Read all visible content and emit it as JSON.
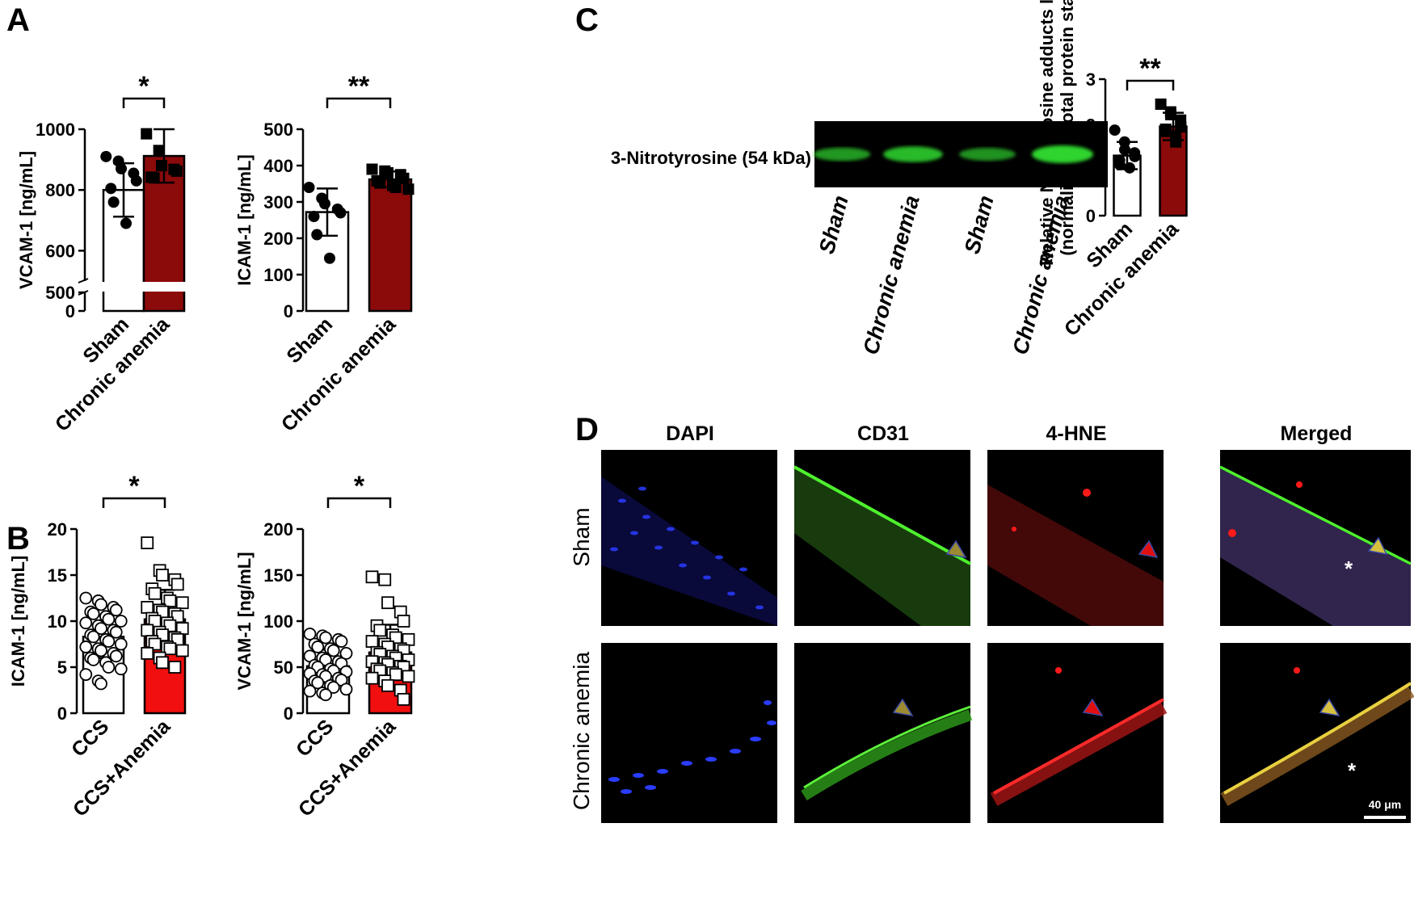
{
  "panels": {
    "A": "A",
    "B": "B",
    "C": "C",
    "D": "D"
  },
  "chart_data": [
    {
      "id": "A1",
      "panel": "A",
      "type": "bar",
      "categories": [
        "Sham",
        "Chronic anemia"
      ],
      "ylabel": "VCAM-1 [ng/mL]",
      "ylim": [
        0,
        1000
      ],
      "axis_break": [
        0,
        500
      ],
      "yticks": [
        0,
        500,
        600,
        800,
        1000
      ],
      "series": [
        {
          "category": "Sham",
          "mean": 800,
          "sd": 88,
          "fill": "#ffffff",
          "points": [
            910,
            895,
            870,
            855,
            830,
            805,
            760,
            690
          ]
        },
        {
          "category": "Chronic anemia",
          "mean": 912,
          "sd": 88,
          "fill": "#8b0a0a",
          "points": [
            985,
            930,
            880,
            868,
            862,
            842,
            840
          ]
        }
      ],
      "significance": "*",
      "markers": [
        "circle-filled",
        "square-filled"
      ]
    },
    {
      "id": "A2",
      "panel": "A",
      "type": "bar",
      "categories": [
        "Sham",
        "Chronic anemia"
      ],
      "ylabel": "ICAM-1 [ng/mL]",
      "ylim": [
        0,
        500
      ],
      "yticks": [
        0,
        100,
        200,
        300,
        400,
        500
      ],
      "series": [
        {
          "category": "Sham",
          "mean": 272,
          "sd": 65,
          "fill": "#ffffff",
          "points": [
            340,
            310,
            295,
            280,
            270,
            260,
            210,
            145
          ]
        },
        {
          "category": "Chronic anemia",
          "mean": 362,
          "sd": 22,
          "fill": "#8b0a0a",
          "points": [
            390,
            385,
            380,
            375,
            365,
            358,
            352,
            345,
            340,
            335
          ]
        }
      ],
      "significance": "**",
      "markers": [
        "circle-filled",
        "square-filled"
      ]
    },
    {
      "id": "B1",
      "panel": "B",
      "type": "bar",
      "categories": [
        "CCS",
        "CCS+Anemia"
      ],
      "ylabel": "ICAM-1 [ng/mL]",
      "ylim": [
        0,
        20
      ],
      "yticks": [
        0,
        5,
        10,
        15,
        20
      ],
      "series": [
        {
          "category": "CCS",
          "mean": 8.3,
          "sd": 2.3,
          "fill": "#ffffff",
          "points": [
            12.5,
            12.2,
            11.8,
            11.5,
            11.2,
            11.0,
            10.8,
            10.5,
            10.2,
            10.0,
            9.8,
            9.5,
            9.2,
            9.0,
            8.8,
            8.5,
            8.3,
            8.0,
            7.8,
            7.5,
            7.2,
            7.0,
            6.8,
            6.5,
            6.2,
            6.0,
            5.8,
            5.5,
            5.0,
            4.8,
            4.2,
            3.5,
            3.2
          ]
        },
        {
          "category": "CCS+Anemia",
          "mean": 10.2,
          "sd": 3.2,
          "fill": "#f10f0f",
          "points": [
            18.5,
            15.5,
            15.0,
            14.5,
            14.0,
            13.5,
            13.0,
            12.5,
            12.2,
            12.0,
            11.5,
            11.2,
            11.0,
            10.8,
            10.5,
            10.3,
            10.0,
            9.8,
            9.5,
            9.2,
            9.0,
            8.8,
            8.5,
            8.2,
            8.0,
            7.8,
            7.5,
            7.2,
            7.0,
            6.8,
            6.5,
            6.0,
            5.5,
            5.0
          ]
        }
      ],
      "significance": "*",
      "markers": [
        "circle-open",
        "square-open"
      ]
    },
    {
      "id": "B2",
      "panel": "B",
      "type": "bar",
      "categories": [
        "CCS",
        "CCS+Anemia"
      ],
      "ylabel": "VCAM-1 [ng/mL]",
      "ylim": [
        0,
        200
      ],
      "yticks": [
        0,
        50,
        100,
        150,
        200
      ],
      "series": [
        {
          "category": "CCS",
          "mean": 51,
          "sd": 18,
          "fill": "#ffffff",
          "points": [
            86,
            84,
            82,
            80,
            78,
            75,
            72,
            70,
            68,
            65,
            62,
            60,
            58,
            56,
            54,
            52,
            50,
            48,
            46,
            45,
            43,
            42,
            40,
            38,
            36,
            35,
            33,
            30,
            28,
            26,
            24,
            22,
            20
          ]
        },
        {
          "category": "CCS+Anemia",
          "mean": 66,
          "sd": 30,
          "fill": "#f10f0f",
          "points": [
            148,
            145,
            120,
            110,
            100,
            95,
            90,
            85,
            82,
            80,
            78,
            75,
            72,
            70,
            68,
            66,
            64,
            62,
            60,
            58,
            56,
            55,
            53,
            51,
            50,
            48,
            46,
            44,
            42,
            40,
            38,
            35,
            30,
            25,
            15
          ]
        }
      ],
      "significance": "*",
      "markers": [
        "circle-open",
        "square-open"
      ]
    },
    {
      "id": "C1",
      "panel": "C",
      "type": "bar",
      "categories": [
        "Sham",
        "Chronic anemia"
      ],
      "ylabel": "Relative Nitrotyrosine adducts level",
      "ylabel2": "(normalized to total protein stain)",
      "ylim": [
        0,
        3
      ],
      "yticks": [
        0,
        1,
        2,
        3
      ],
      "series": [
        {
          "category": "Sham",
          "mean": 1.32,
          "sd": 0.3,
          "fill": "#ffffff",
          "points": [
            1.88,
            1.62,
            1.45,
            1.38,
            1.3,
            1.22,
            1.12,
            1.05
          ]
        },
        {
          "category": "Chronic anemia",
          "mean": 1.96,
          "sd": 0.3,
          "fill": "#8b0a0a",
          "points": [
            2.45,
            2.28,
            2.22,
            2.1,
            1.95,
            1.9,
            1.85,
            1.75,
            1.62
          ]
        }
      ],
      "significance": "**",
      "markers": [
        "circle-filled",
        "square-filled"
      ]
    }
  ],
  "blot": {
    "label": "3-Nitrotyrosine (54 kDa)",
    "lanes": [
      "Sham",
      "Chronic anemia",
      "Sham",
      "Chronic anemia"
    ],
    "band_intensity": [
      0.55,
      0.8,
      0.5,
      1.0
    ]
  },
  "micro": {
    "columns": [
      "DAPI",
      "CD31",
      "4-HNE",
      "Merged"
    ],
    "rows": [
      "Sham",
      "Chronic anemia"
    ],
    "scale_bar": "40 μm"
  }
}
